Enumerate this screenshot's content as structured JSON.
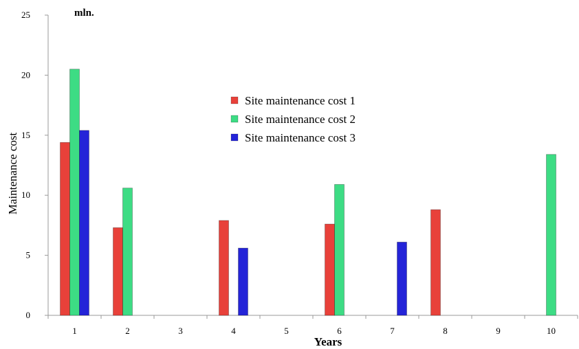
{
  "chart_data": {
    "type": "bar",
    "categories": [
      "1",
      "2",
      "3",
      "4",
      "5",
      "6",
      "7",
      "8",
      "9",
      "10"
    ],
    "series": [
      {
        "name": "Site maintenance cost  1",
        "color": "#e8413a",
        "values": [
          14.4,
          7.3,
          null,
          7.9,
          null,
          7.6,
          null,
          8.8,
          null,
          null
        ]
      },
      {
        "name": "Site maintenance cost  2",
        "color": "#3ddc84",
        "values": [
          20.5,
          10.6,
          null,
          null,
          null,
          10.9,
          null,
          null,
          null,
          13.4
        ]
      },
      {
        "name": "Site maintenance cost  3",
        "color": "#2424d8",
        "values": [
          15.4,
          null,
          null,
          5.6,
          null,
          null,
          6.1,
          null,
          null,
          null
        ]
      }
    ],
    "xlabel": "Years",
    "ylabel": "Maintenance cost",
    "unit_label": "mln.",
    "ylim": [
      0,
      25
    ],
    "yticks": [
      0,
      5,
      10,
      15,
      20,
      25
    ],
    "grid": false,
    "legend_position": "center"
  }
}
